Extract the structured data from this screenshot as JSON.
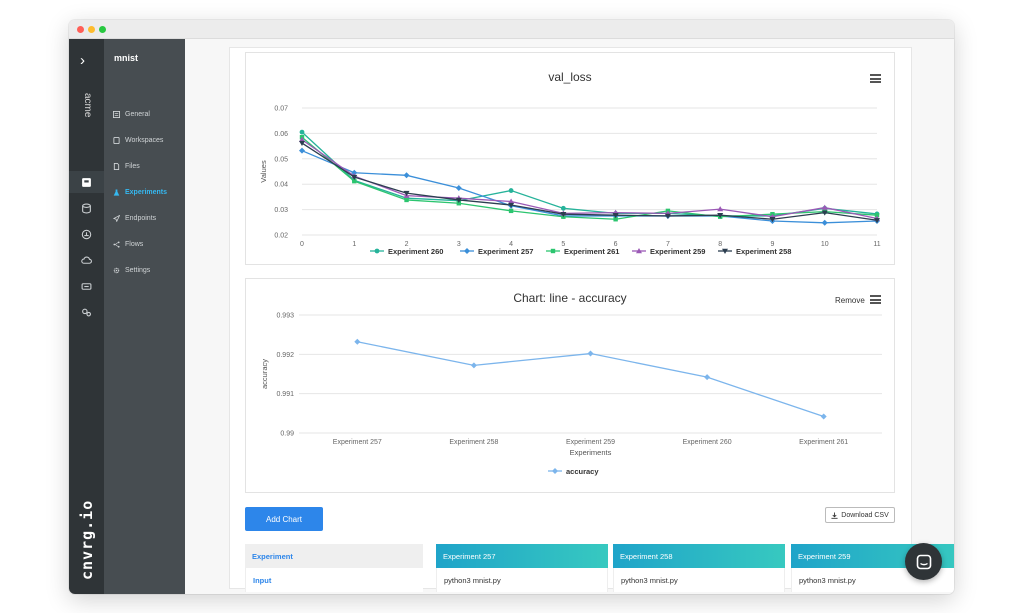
{
  "sidebar_rail": {
    "org_name": "acme",
    "brand": "cnvrg.io",
    "icons": [
      "chevron-right-icon",
      "project-icon",
      "database-icon",
      "library-icon",
      "cloud-icon",
      "compute-icon",
      "settings-cogs-icon"
    ]
  },
  "sidebar": {
    "project_name": "mnist",
    "items": [
      {
        "label": "General",
        "icon": "general-icon"
      },
      {
        "label": "Workspaces",
        "icon": "workspace-icon"
      },
      {
        "label": "Files",
        "icon": "file-icon"
      },
      {
        "label": "Experiments",
        "icon": "flask-icon"
      },
      {
        "label": "Endpoints",
        "icon": "rocket-icon"
      },
      {
        "label": "Flows",
        "icon": "flows-icon"
      },
      {
        "label": "Settings",
        "icon": "gear-icon"
      }
    ],
    "active": "Experiments"
  },
  "charts": {
    "val_loss": {
      "title": "val_loss"
    },
    "accuracy": {
      "title": "Chart: line - accuracy",
      "remove_label": "Remove"
    }
  },
  "chart_data": [
    {
      "type": "line",
      "title": "val_loss",
      "xlabel": "",
      "ylabel": "Values",
      "x": [
        0,
        1,
        2,
        3,
        4,
        5,
        6,
        7,
        8,
        9,
        10,
        11
      ],
      "xlim": [
        0,
        11
      ],
      "ylim": [
        0.02,
        0.07
      ],
      "yticks": [
        0.02,
        0.03,
        0.04,
        0.05,
        0.06,
        0.07
      ],
      "grid": true,
      "legend": "bottom",
      "series": [
        {
          "name": "Experiment 260",
          "color": "#26b39a",
          "marker": "circle",
          "values": [
            0.0605,
            0.0415,
            0.0345,
            0.0335,
            0.0375,
            0.0305,
            0.0285,
            0.0285,
            0.0275,
            0.0275,
            0.0305,
            0.0283
          ]
        },
        {
          "name": "Experiment 257",
          "color": "#3b8fd9",
          "marker": "diamond",
          "values": [
            0.0532,
            0.0445,
            0.0435,
            0.0385,
            0.0315,
            0.0275,
            0.0275,
            0.0275,
            0.0275,
            0.0255,
            0.0248,
            0.0255
          ]
        },
        {
          "name": "Experiment 261",
          "color": "#2cc56f",
          "marker": "square",
          "values": [
            0.0585,
            0.0412,
            0.0338,
            0.0325,
            0.0295,
            0.0272,
            0.0262,
            0.0295,
            0.0272,
            0.0282,
            0.0292,
            0.0278
          ]
        },
        {
          "name": "Experiment 259",
          "color": "#9b59b6",
          "marker": "triangle",
          "values": [
            0.0575,
            0.0432,
            0.0355,
            0.0345,
            0.0332,
            0.0285,
            0.0288,
            0.0285,
            0.0302,
            0.0272,
            0.0308,
            0.0265
          ]
        },
        {
          "name": "Experiment 258",
          "color": "#2c3e50",
          "marker": "triangle-down",
          "values": [
            0.0562,
            0.0428,
            0.0365,
            0.0338,
            0.0318,
            0.0282,
            0.0278,
            0.0275,
            0.0278,
            0.0262,
            0.0288,
            0.0258
          ]
        }
      ]
    },
    {
      "type": "line",
      "title": "Chart: line - accuracy",
      "xlabel": "Experiments",
      "ylabel": "accuracy",
      "categories": [
        "Experiment 257",
        "Experiment 258",
        "Experiment 259",
        "Experiment 260",
        "Experiment 261"
      ],
      "ylim": [
        0.99,
        0.993
      ],
      "yticks": [
        0.99,
        0.991,
        0.992,
        0.993
      ],
      "grid": true,
      "legend": "bottom",
      "series": [
        {
          "name": "accuracy",
          "color": "#7cb5ec",
          "marker": "diamond",
          "values": [
            0.99232,
            0.99172,
            0.99202,
            0.99142,
            0.99042
          ]
        }
      ]
    }
  ],
  "toolbar": {
    "add_chart_label": "Add Chart",
    "download_csv_label": "Download CSV"
  },
  "table": {
    "row_labels": [
      "Experiment",
      "Input"
    ],
    "experiments": [
      {
        "name": "Experiment 257",
        "input": "python3 mnist.py"
      },
      {
        "name": "Experiment 258",
        "input": "python3 mnist.py"
      },
      {
        "name": "Experiment 259",
        "input": "python3 mnist.py"
      }
    ]
  },
  "colors": {
    "accent": "#2d86ea",
    "active_nav": "#35b8f0",
    "rail_bg": "#2f3437",
    "sidebar_bg": "#474d51"
  }
}
